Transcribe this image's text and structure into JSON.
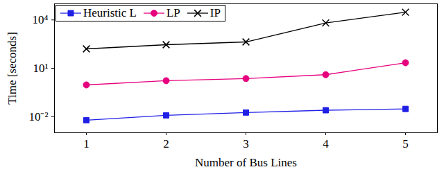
{
  "chart_data": {
    "type": "line",
    "x_label": "Number of Bus Lines",
    "y_label": "Time [seconds]",
    "x": [
      1,
      2,
      3,
      4,
      5
    ],
    "series": [
      {
        "name": "Heuristic L",
        "color": "#1f1fe6",
        "marker": "square",
        "values": [
          0.006,
          0.012,
          0.018,
          0.025,
          0.03
        ]
      },
      {
        "name": "LP",
        "color": "#e6007e",
        "marker": "circle",
        "values": [
          0.93,
          1.7,
          2.3,
          4,
          22
        ]
      },
      {
        "name": "IP",
        "color": "#000000",
        "marker": "times",
        "values": [
          160,
          290,
          430,
          6500,
          30000
        ]
      }
    ],
    "xlim": [
      0.6,
      5.4
    ],
    "xticks": [
      1,
      2,
      3,
      4,
      5
    ],
    "ylim": [
      0.001,
      100000
    ],
    "yticks": [
      {
        "value": 0.01,
        "label": "10⁻²"
      },
      {
        "value": 10,
        "label": "10¹"
      },
      {
        "value": 10000,
        "label": "10⁴"
      }
    ],
    "log": "y",
    "grid": false,
    "legend": "top-left"
  }
}
